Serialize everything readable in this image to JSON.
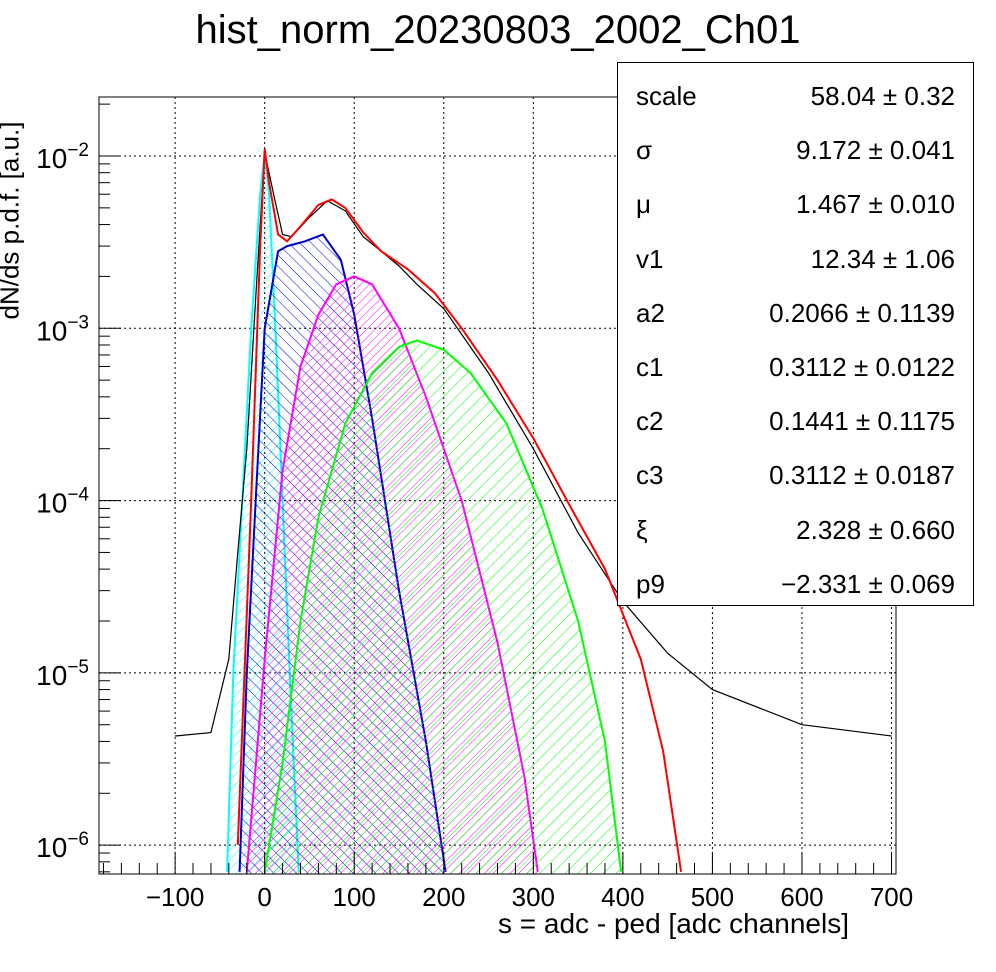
{
  "title": "hist_norm_20230803_2002_Ch01",
  "stats_box": [
    {
      "name": "scale",
      "value": "58.04 ± 0.32"
    },
    {
      "name": "σ",
      "value": "9.172 ± 0.041"
    },
    {
      "name": "μ",
      "value": "1.467 ± 0.010"
    },
    {
      "name": "v1",
      "value": "12.34 ± 1.06"
    },
    {
      "name": "a2",
      "value": "0.2066 ± 0.1139"
    },
    {
      "name": "c1",
      "value": "0.3112 ± 0.0122"
    },
    {
      "name": "c2",
      "value": "0.1441 ± 0.1175"
    },
    {
      "name": "c3",
      "value": "0.3112 ± 0.0187"
    },
    {
      "name": "ξ",
      "value": "2.328 ± 0.660"
    },
    {
      "name": "p9",
      "value": "−2.331 ± 0.069"
    }
  ],
  "chart_data": {
    "type": "line",
    "title": "hist_norm_20230803_2002_Ch01",
    "xlabel": "s = adc - ped [adc channels]",
    "ylabel": "dN/ds p.d.f. [a.u.]",
    "xlim": [
      -185,
      705
    ],
    "ylim": [
      6.8e-07,
      0.022
    ],
    "yscale": "log",
    "grid": true,
    "x_ticks": [
      -100,
      0,
      100,
      200,
      300,
      400,
      500,
      600,
      700
    ],
    "y_ticks": [
      {
        "value": 1e-06,
        "label": "10",
        "exp": "−6"
      },
      {
        "value": 1e-05,
        "label": "10",
        "exp": "−5"
      },
      {
        "value": 0.0001,
        "label": "10",
        "exp": "−4"
      },
      {
        "value": 0.001,
        "label": "10",
        "exp": "−3"
      },
      {
        "value": 0.01,
        "label": "10",
        "exp": "−2"
      }
    ],
    "series": [
      {
        "color": "#000000",
        "style": "histogram",
        "points": [
          [
            -100,
            4.3e-06
          ],
          [
            -60,
            4.5e-06
          ],
          [
            -40,
            1.2e-05
          ],
          [
            -30,
            5e-05
          ],
          [
            -20,
            0.0002
          ],
          [
            -10,
            0.0015
          ],
          [
            0,
            0.0105
          ],
          [
            10,
            0.006
          ],
          [
            20,
            0.0035
          ],
          [
            30,
            0.0034
          ],
          [
            50,
            0.0044
          ],
          [
            70,
            0.0055
          ],
          [
            90,
            0.0048
          ],
          [
            110,
            0.0034
          ],
          [
            130,
            0.0028
          ],
          [
            150,
            0.0023
          ],
          [
            170,
            0.0018
          ],
          [
            200,
            0.0013
          ],
          [
            250,
            0.00055
          ],
          [
            300,
            0.0002
          ],
          [
            350,
            6.5e-05
          ],
          [
            400,
            2.6e-05
          ],
          [
            450,
            1.3e-05
          ],
          [
            500,
            8e-06
          ],
          [
            600,
            5e-06
          ],
          [
            700,
            4.3e-06
          ]
        ]
      },
      {
        "color": "#ff0000",
        "style": "curve",
        "points": [
          [
            -30,
            1e-06
          ],
          [
            -15,
            0.0001
          ],
          [
            -5,
            0.003
          ],
          [
            0,
            0.011
          ],
          [
            5,
            0.007
          ],
          [
            15,
            0.0035
          ],
          [
            25,
            0.0032
          ],
          [
            40,
            0.0039
          ],
          [
            60,
            0.0052
          ],
          [
            75,
            0.0056
          ],
          [
            90,
            0.005
          ],
          [
            110,
            0.0036
          ],
          [
            130,
            0.0028
          ],
          [
            160,
            0.0022
          ],
          [
            190,
            0.0016
          ],
          [
            220,
            0.001
          ],
          [
            260,
            0.0005
          ],
          [
            300,
            0.00023
          ],
          [
            340,
            9.5e-05
          ],
          [
            380,
            4e-05
          ],
          [
            420,
            1.2e-05
          ],
          [
            445,
            3.5e-06
          ],
          [
            465,
            7e-07
          ]
        ]
      },
      {
        "color": "#00ffff",
        "style": "fill",
        "points": [
          [
            -42,
            7e-07
          ],
          [
            -35,
            1e-05
          ],
          [
            -25,
            0.0001
          ],
          [
            -15,
            0.001
          ],
          [
            -5,
            0.006
          ],
          [
            0,
            0.0105
          ],
          [
            5,
            0.006
          ],
          [
            12,
            0.001
          ],
          [
            20,
            0.0001
          ],
          [
            28,
            1e-05
          ],
          [
            38,
            7e-07
          ]
        ]
      },
      {
        "color": "#0000cc",
        "style": "fill",
        "points": [
          [
            -28,
            7e-07
          ],
          [
            -20,
            1e-05
          ],
          [
            -10,
            0.0001
          ],
          [
            0,
            0.001
          ],
          [
            15,
            0.0028
          ],
          [
            25,
            0.003
          ],
          [
            45,
            0.0032
          ],
          [
            65,
            0.0035
          ],
          [
            85,
            0.0025
          ],
          [
            100,
            0.0012
          ],
          [
            120,
            0.0003
          ],
          [
            150,
            3e-05
          ],
          [
            180,
            4e-06
          ],
          [
            202,
            7e-07
          ]
        ]
      },
      {
        "color": "#ff00ff",
        "style": "fill",
        "points": [
          [
            -20,
            7e-07
          ],
          [
            0,
            1.2e-05
          ],
          [
            20,
            0.00015
          ],
          [
            40,
            0.0006
          ],
          [
            60,
            0.0012
          ],
          [
            80,
            0.0018
          ],
          [
            100,
            0.002
          ],
          [
            120,
            0.0018
          ],
          [
            150,
            0.001
          ],
          [
            180,
            0.0004
          ],
          [
            220,
            0.0001
          ],
          [
            260,
            1.5e-05
          ],
          [
            290,
            2.5e-06
          ],
          [
            305,
            7e-07
          ]
        ]
      },
      {
        "color": "#00ff00",
        "style": "fill",
        "points": [
          [
            0,
            7e-07
          ],
          [
            20,
            3e-06
          ],
          [
            40,
            2e-05
          ],
          [
            60,
            8e-05
          ],
          [
            90,
            0.00028
          ],
          [
            120,
            0.00055
          ],
          [
            150,
            0.00078
          ],
          [
            170,
            0.00085
          ],
          [
            200,
            0.00075
          ],
          [
            230,
            0.00055
          ],
          [
            270,
            0.00028
          ],
          [
            310,
            9e-05
          ],
          [
            350,
            2e-05
          ],
          [
            380,
            4e-06
          ],
          [
            398,
            7e-07
          ]
        ]
      }
    ]
  }
}
